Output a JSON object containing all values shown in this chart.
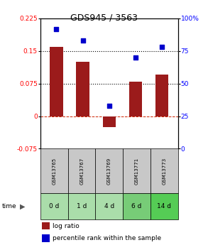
{
  "title": "GDS945 / 3563",
  "categories": [
    "GSM13765",
    "GSM13767",
    "GSM13769",
    "GSM13771",
    "GSM13773"
  ],
  "time_labels": [
    "0 d",
    "1 d",
    "4 d",
    "6 d",
    "14 d"
  ],
  "log_ratio": [
    0.16,
    0.125,
    -0.025,
    0.08,
    0.095
  ],
  "percentile_rank": [
    91.5,
    83.0,
    33.0,
    70.0,
    78.0
  ],
  "bar_color": "#9B1B1B",
  "square_color": "#0000CC",
  "left_ylim": [
    -0.075,
    0.225
  ],
  "right_ylim": [
    0,
    100
  ],
  "left_yticks": [
    -0.075,
    0,
    0.075,
    0.15,
    0.225
  ],
  "right_yticks": [
    0,
    25,
    50,
    75,
    100
  ],
  "right_yticklabels": [
    "0",
    "25",
    "50",
    "75",
    "100%"
  ],
  "left_yticklabels": [
    "-0.075",
    "0",
    "0.075",
    "0.15",
    "0.225"
  ],
  "hline_y": [
    0.075,
    0.15
  ],
  "dotline_color": "black",
  "zeroline_color": "#CC2200",
  "header_bg": "#C8C8C8",
  "time_bg_colors": [
    "#AADDAA",
    "#AADDAA",
    "#AADDAA",
    "#77CC77",
    "#55CC55"
  ],
  "title_fontsize": 9,
  "tick_fontsize": 6.5,
  "legend_fontsize": 6.5,
  "bar_width": 0.5,
  "gsm_fontsize": 5.0,
  "time_fontsize": 6.5
}
